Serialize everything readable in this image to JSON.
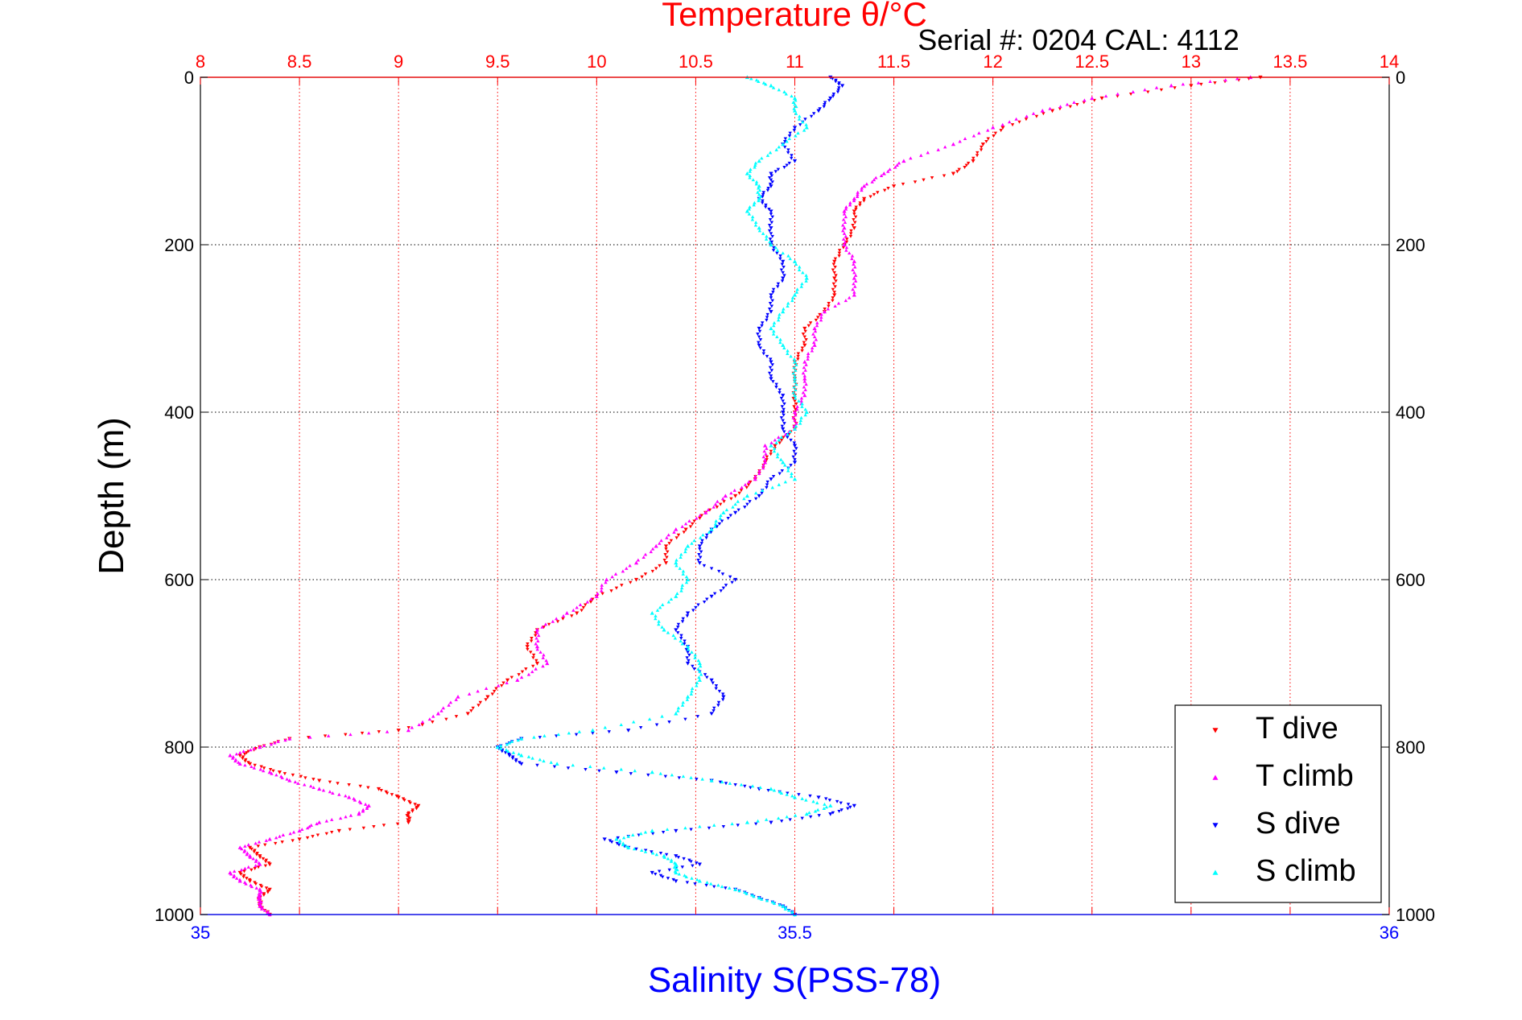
{
  "chart_data": {
    "type": "scatter",
    "title": "Temperature θ/°C",
    "annotation": "Serial #: 0204  CAL: 4112",
    "ylabel": "Depth (m)",
    "xlabel": "Salinity S(PSS-78)",
    "top_axis": {
      "quantity": "temperature",
      "range": [
        8,
        14
      ],
      "ticks": [
        "8",
        "8.5",
        "9",
        "9.5",
        "10",
        "10.5",
        "11",
        "11.5",
        "12",
        "12.5",
        "13",
        "13.5",
        "14"
      ]
    },
    "bottom_axis": {
      "quantity": "salinity",
      "range": [
        35,
        36
      ],
      "ticks": [
        "35",
        "35.5",
        "36"
      ]
    },
    "depth_axis": {
      "range": [
        0,
        1000
      ],
      "reversed": true,
      "ticks": [
        "0",
        "200",
        "400",
        "600",
        "800",
        "1000"
      ]
    },
    "grid": true,
    "legend_position": "bottom-right",
    "colors": {
      "t_dive": "#ff0000",
      "t_climb": "#ff00ff",
      "s_dive": "#0000ff",
      "s_climb": "#00ffff",
      "top_axis": "#ff0000",
      "bottom_axis": "#0000ff"
    },
    "series": [
      {
        "name": "T dive",
        "axis": "temperature",
        "marker": "triangle-down",
        "color": "#ff0000",
        "depth": [
          0,
          10,
          25,
          40,
          60,
          80,
          100,
          115,
          130,
          145,
          160,
          180,
          200,
          220,
          240,
          260,
          280,
          300,
          320,
          340,
          360,
          380,
          400,
          420,
          440,
          460,
          480,
          500,
          520,
          540,
          560,
          580,
          600,
          620,
          640,
          660,
          680,
          700,
          720,
          740,
          760,
          780,
          790,
          800,
          810,
          820,
          830,
          840,
          850,
          860,
          870,
          880,
          890,
          900,
          910,
          920,
          930,
          940,
          950,
          960,
          970,
          980,
          990,
          1000
        ],
        "values": [
          13.35,
          13.0,
          12.55,
          12.3,
          12.05,
          11.95,
          11.9,
          11.8,
          11.5,
          11.35,
          11.3,
          11.3,
          11.25,
          11.2,
          11.2,
          11.2,
          11.15,
          11.05,
          11.05,
          11.0,
          11.0,
          11.0,
          11.0,
          11.0,
          10.9,
          10.85,
          10.8,
          10.7,
          10.55,
          10.45,
          10.35,
          10.35,
          10.2,
          10.0,
          9.9,
          9.7,
          9.65,
          9.7,
          9.55,
          9.45,
          9.35,
          9.0,
          8.45,
          8.3,
          8.2,
          8.25,
          8.4,
          8.6,
          8.9,
          9.0,
          9.1,
          9.05,
          9.05,
          8.7,
          8.5,
          8.25,
          8.3,
          8.35,
          8.2,
          8.25,
          8.35,
          8.3,
          8.3,
          8.35
        ]
      },
      {
        "name": "T climb",
        "axis": "temperature",
        "marker": "triangle-up",
        "color": "#ff00ff",
        "depth": [
          0,
          10,
          25,
          40,
          60,
          80,
          100,
          115,
          130,
          145,
          160,
          180,
          200,
          220,
          240,
          260,
          280,
          300,
          320,
          340,
          360,
          380,
          400,
          420,
          440,
          460,
          480,
          500,
          520,
          540,
          560,
          580,
          600,
          620,
          640,
          660,
          680,
          700,
          720,
          740,
          760,
          780,
          790,
          800,
          810,
          820,
          830,
          840,
          850,
          860,
          870,
          880,
          890,
          900,
          910,
          920,
          930,
          940,
          950,
          960,
          970,
          980,
          990,
          1000
        ],
        "values": [
          13.3,
          12.9,
          12.5,
          12.25,
          12.0,
          11.8,
          11.55,
          11.45,
          11.35,
          11.3,
          11.25,
          11.25,
          11.25,
          11.3,
          11.3,
          11.3,
          11.15,
          11.1,
          11.1,
          11.05,
          11.05,
          11.05,
          11.0,
          11.0,
          10.85,
          10.85,
          10.8,
          10.65,
          10.55,
          10.4,
          10.3,
          10.2,
          10.05,
          10.0,
          9.85,
          9.7,
          9.7,
          9.75,
          9.6,
          9.3,
          9.2,
          9.05,
          8.45,
          8.3,
          8.15,
          8.2,
          8.35,
          8.45,
          8.6,
          8.75,
          8.85,
          8.8,
          8.6,
          8.5,
          8.35,
          8.2,
          8.25,
          8.3,
          8.15,
          8.2,
          8.3,
          8.3,
          8.3,
          8.35
        ]
      },
      {
        "name": "S dive",
        "axis": "salinity",
        "marker": "triangle-down",
        "color": "#0000ff",
        "depth": [
          0,
          10,
          25,
          40,
          60,
          80,
          100,
          115,
          130,
          145,
          160,
          180,
          200,
          220,
          240,
          260,
          280,
          300,
          320,
          340,
          360,
          380,
          400,
          420,
          440,
          460,
          480,
          500,
          520,
          540,
          560,
          580,
          600,
          620,
          640,
          660,
          680,
          700,
          720,
          740,
          760,
          780,
          790,
          800,
          810,
          820,
          830,
          840,
          850,
          860,
          870,
          880,
          890,
          900,
          910,
          920,
          930,
          940,
          950,
          960,
          970,
          980,
          990,
          1000
        ],
        "values": [
          35.53,
          35.54,
          35.53,
          35.52,
          35.5,
          35.49,
          35.5,
          35.48,
          35.48,
          35.47,
          35.48,
          35.48,
          35.48,
          35.49,
          35.49,
          35.48,
          35.48,
          35.47,
          35.47,
          35.48,
          35.48,
          35.49,
          35.49,
          35.49,
          35.5,
          35.5,
          35.48,
          35.47,
          35.45,
          35.43,
          35.42,
          35.42,
          35.45,
          35.43,
          35.41,
          35.4,
          35.41,
          35.41,
          35.43,
          35.44,
          35.43,
          35.36,
          35.27,
          35.25,
          35.26,
          35.27,
          35.35,
          35.43,
          35.47,
          35.52,
          35.55,
          35.53,
          35.48,
          35.4,
          35.34,
          35.36,
          35.4,
          35.42,
          35.38,
          35.4,
          35.45,
          35.47,
          35.49,
          35.5
        ]
      },
      {
        "name": "S climb",
        "axis": "salinity",
        "marker": "triangle-up",
        "color": "#00ffff",
        "depth": [
          0,
          10,
          25,
          40,
          60,
          80,
          100,
          115,
          130,
          145,
          160,
          180,
          200,
          220,
          240,
          260,
          280,
          300,
          320,
          340,
          360,
          380,
          400,
          420,
          440,
          460,
          480,
          500,
          520,
          540,
          560,
          580,
          600,
          620,
          640,
          660,
          680,
          700,
          720,
          740,
          760,
          780,
          790,
          800,
          810,
          820,
          830,
          840,
          850,
          860,
          870,
          880,
          890,
          900,
          910,
          920,
          930,
          940,
          950,
          960,
          970,
          980,
          990,
          1000
        ],
        "values": [
          35.46,
          35.48,
          35.5,
          35.5,
          35.51,
          35.49,
          35.47,
          35.46,
          35.47,
          35.47,
          35.46,
          35.47,
          35.48,
          35.5,
          35.51,
          35.5,
          35.49,
          35.48,
          35.49,
          35.5,
          35.5,
          35.5,
          35.51,
          35.5,
          35.48,
          35.49,
          35.5,
          35.46,
          35.44,
          35.43,
          35.41,
          35.4,
          35.41,
          35.4,
          35.38,
          35.39,
          35.41,
          35.42,
          35.42,
          35.41,
          35.4,
          35.33,
          35.27,
          35.25,
          35.27,
          35.3,
          35.38,
          35.43,
          35.48,
          35.5,
          35.53,
          35.51,
          35.46,
          35.38,
          35.35,
          35.36,
          35.39,
          35.4,
          35.4,
          35.42,
          35.45,
          35.47,
          35.49,
          35.5
        ]
      }
    ]
  }
}
